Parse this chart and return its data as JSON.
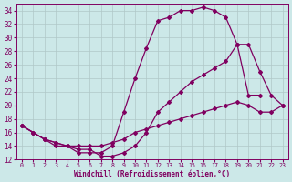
{
  "xlabel": "Windchill (Refroidissement éolien,°C)",
  "bg_color": "#cce8e8",
  "line_color": "#800060",
  "grid_color": "#b0c8c8",
  "xlim": [
    -0.5,
    23.5
  ],
  "ylim": [
    12,
    35
  ],
  "yticks": [
    12,
    14,
    16,
    18,
    20,
    22,
    24,
    26,
    28,
    30,
    32,
    34
  ],
  "xticks": [
    0,
    1,
    2,
    3,
    4,
    5,
    6,
    7,
    8,
    9,
    10,
    11,
    12,
    13,
    14,
    15,
    16,
    17,
    18,
    19,
    20,
    21,
    22,
    23
  ],
  "curve1_x": [
    0,
    1,
    2,
    3,
    4,
    5,
    6,
    7,
    8,
    9,
    10,
    11,
    12,
    13,
    14,
    15,
    16,
    17,
    18,
    19,
    20,
    21
  ],
  "curve1_y": [
    17,
    16,
    15,
    14,
    14,
    13,
    13,
    13,
    14,
    19,
    24,
    28.5,
    32.5,
    33,
    34,
    34,
    34.5,
    34,
    33,
    29,
    21.5,
    21.5
  ],
  "curve2_x": [
    0,
    1,
    2,
    3,
    4,
    5,
    6,
    7,
    8,
    9,
    10,
    11,
    12,
    13,
    14,
    15,
    16,
    17,
    18,
    19,
    20,
    21,
    22,
    23
  ],
  "curve2_y": [
    17,
    16,
    15,
    14.5,
    14,
    13.5,
    13.5,
    12.5,
    12.5,
    13,
    14,
    16,
    19,
    20.5,
    22,
    23.5,
    24.5,
    25.5,
    26.5,
    29,
    29,
    25,
    21.5,
    20
  ],
  "curve3_x": [
    0,
    1,
    2,
    3,
    4,
    5,
    6,
    7,
    8,
    9,
    10,
    11,
    12,
    13,
    14,
    15,
    16,
    17,
    18,
    19,
    20,
    21,
    22,
    23
  ],
  "curve3_y": [
    17,
    16,
    15,
    14.5,
    14,
    14,
    14,
    14,
    14.5,
    15,
    16,
    16.5,
    17,
    17.5,
    18,
    18.5,
    19,
    19.5,
    20,
    20.5,
    20,
    19,
    19,
    20
  ]
}
